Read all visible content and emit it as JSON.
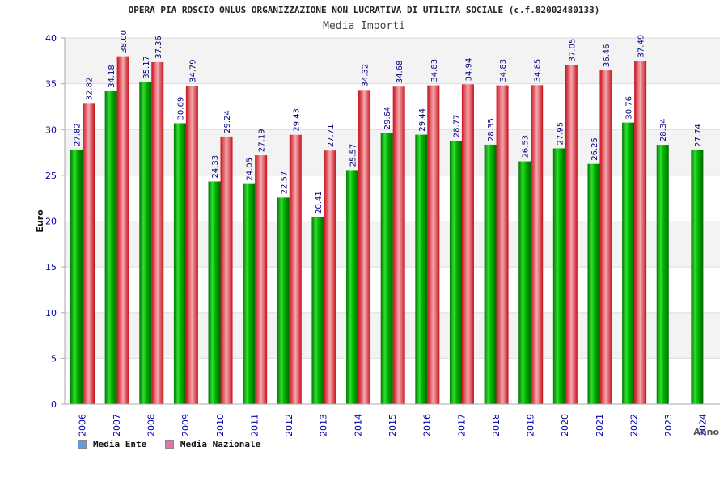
{
  "chart_data": {
    "type": "bar",
    "title": "OPERA PIA ROSCIO ONLUS ORGANIZZAZIONE NON LUCRATIVA DI UTILITA SOCIALE (c.f.82002480133)",
    "subtitle": "Media Importi",
    "ylabel": "Euro",
    "xlabel": "Anno",
    "ylim": [
      0,
      40
    ],
    "yticks": [
      0,
      5,
      10,
      15,
      20,
      25,
      30,
      35,
      40
    ],
    "grid": true,
    "legend_position": "bottom-left",
    "categories": [
      "2006",
      "2007",
      "2008",
      "2009",
      "2010",
      "2011",
      "2012",
      "2013",
      "2014",
      "2015",
      "2016",
      "2017",
      "2018",
      "2019",
      "2020",
      "2021",
      "2022",
      "2023",
      "2024"
    ],
    "series": [
      {
        "name": "Media Ente",
        "color": "#00aa00",
        "legend_color": "#6699dd",
        "values": [
          27.82,
          34.18,
          35.17,
          30.69,
          24.33,
          24.05,
          22.57,
          20.41,
          25.57,
          29.64,
          29.44,
          28.77,
          28.35,
          26.53,
          27.95,
          26.25,
          30.76,
          28.34,
          27.74
        ],
        "labels": [
          "27.82",
          "34.18",
          "35.17",
          "30.69",
          "24.33",
          "24.05",
          "22.57",
          "20.41",
          "25.57",
          "29.64",
          "29.44",
          "28.77",
          "28.35",
          "26.53",
          "27.95",
          "26.25",
          "30.76",
          "28.34",
          "27.74"
        ]
      },
      {
        "name": "Media Nazionale",
        "color": "#e8202a",
        "legend_color": "#dd77aa",
        "values": [
          32.82,
          38.0,
          37.36,
          34.79,
          29.24,
          27.19,
          29.43,
          27.71,
          34.32,
          34.68,
          34.83,
          34.94,
          34.83,
          34.85,
          37.05,
          36.46,
          37.49,
          null,
          null
        ],
        "labels": [
          "32.82",
          "38.00",
          "37.36",
          "34.79",
          "29.24",
          "27.19",
          "29.43",
          "27.71",
          "34.32",
          "34.68",
          "34.83",
          "34.94",
          "34.83",
          "34.85",
          "37.05",
          "36.46",
          "37.49",
          null,
          null
        ]
      }
    ]
  }
}
